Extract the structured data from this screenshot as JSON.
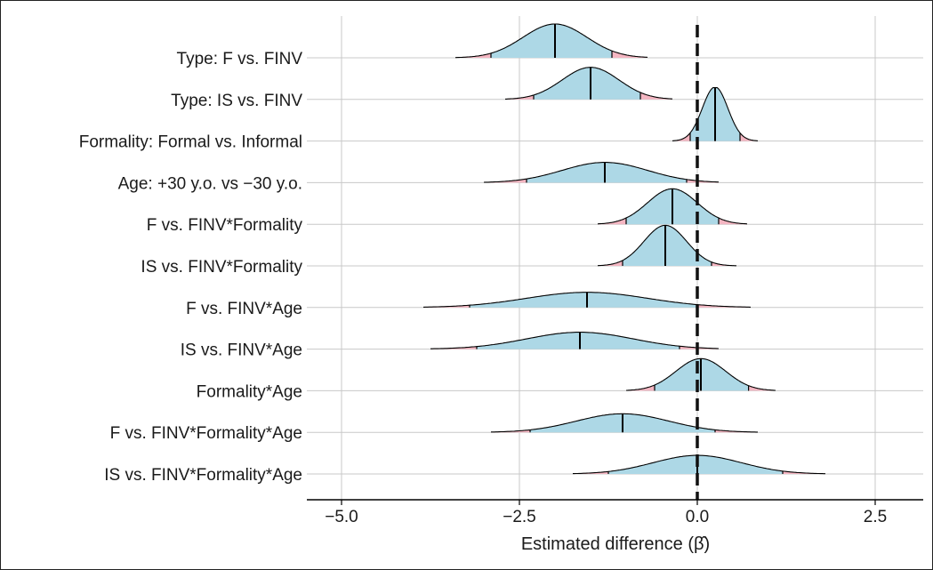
{
  "chart_data": {
    "type": "ridgeline",
    "title": "",
    "xlabel": "Estimated difference (β̂)",
    "ylabel": "",
    "xlim": [
      -5.5,
      3.2
    ],
    "xticks": [
      -5.0,
      -2.5,
      0.0,
      2.5
    ],
    "xtick_labels": [
      "−5.0",
      "−2.5",
      "0.0",
      "2.5"
    ],
    "grid": true,
    "reference_line": 0.0,
    "colors": {
      "fill": "#add8e6",
      "tail": "#f4b6c2",
      "outline": "#000000",
      "grid": "#c8c8c8",
      "refline": "#111111"
    },
    "series": [
      {
        "name": "Type: F vs. FINV",
        "median": -2.0,
        "ci": [
          -2.9,
          -1.2
        ],
        "range": [
          -3.4,
          -0.7
        ],
        "peak": 1.0,
        "sd": 0.45
      },
      {
        "name": "Type: IS vs. FINV",
        "median": -1.5,
        "ci": [
          -2.3,
          -0.8
        ],
        "range": [
          -2.7,
          -0.35
        ],
        "peak": 0.95,
        "sd": 0.4
      },
      {
        "name": "Formality: Formal vs. Informal",
        "median": 0.25,
        "ci": [
          -0.1,
          0.6
        ],
        "range": [
          -0.35,
          0.85
        ],
        "peak": 1.6,
        "sd": 0.18
      },
      {
        "name": "Age: +30 y.o. vs −30 y.o.",
        "median": -1.3,
        "ci": [
          -2.4,
          -0.15
        ],
        "range": [
          -3.0,
          0.3
        ],
        "peak": 0.6,
        "sd": 0.6
      },
      {
        "name": "F vs. FINV*Formality",
        "median": -0.35,
        "ci": [
          -1.0,
          0.3
        ],
        "range": [
          -1.4,
          0.7
        ],
        "peak": 1.05,
        "sd": 0.35
      },
      {
        "name": "IS vs. FINV*Formality",
        "median": -0.45,
        "ci": [
          -1.05,
          0.2
        ],
        "range": [
          -1.4,
          0.55
        ],
        "peak": 1.2,
        "sd": 0.3
      },
      {
        "name": "F vs. FINV*Age",
        "median": -1.55,
        "ci": [
          -3.2,
          0.0
        ],
        "range": [
          -3.85,
          0.75
        ],
        "peak": 0.45,
        "sd": 0.85
      },
      {
        "name": "IS vs. FINV*Age",
        "median": -1.65,
        "ci": [
          -3.1,
          -0.25
        ],
        "range": [
          -3.75,
          0.3
        ],
        "peak": 0.5,
        "sd": 0.75
      },
      {
        "name": "Formality*Age",
        "median": 0.05,
        "ci": [
          -0.6,
          0.72
        ],
        "range": [
          -1.0,
          1.1
        ],
        "peak": 0.95,
        "sd": 0.35
      },
      {
        "name": "F vs. FINV*Formality*Age",
        "median": -1.05,
        "ci": [
          -2.35,
          0.25
        ],
        "range": [
          -2.9,
          0.85
        ],
        "peak": 0.55,
        "sd": 0.65
      },
      {
        "name": "IS vs. FINV*Formality*Age",
        "median": 0.0,
        "ci": [
          -1.25,
          1.2
        ],
        "range": [
          -1.75,
          1.8
        ],
        "peak": 0.55,
        "sd": 0.62
      }
    ]
  }
}
